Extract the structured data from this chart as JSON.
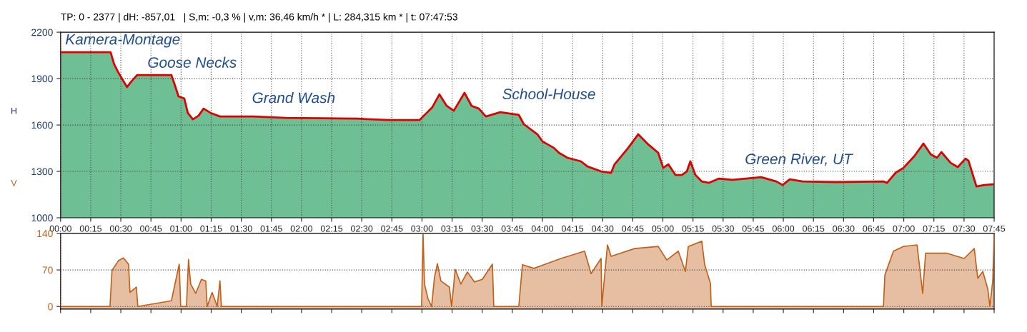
{
  "chart_data": [
    {
      "type": "area",
      "title": "TP: 0 - 2377 | dH: -857,01   | S,m: -0,3 % | v,m: 36,46 km/h * | L: 284,315 km * | t: 07:47:53",
      "ylabel": "H",
      "x": [
        0.0,
        0.415,
        0.445,
        0.475,
        0.516,
        0.552,
        0.582,
        0.635,
        0.92,
        0.95,
        0.979,
        1.027,
        1.056,
        1.098,
        1.145,
        1.187,
        1.246,
        1.323,
        1.602,
        1.869,
        2.463,
        2.73,
        2.979,
        3.027,
        3.086,
        3.145,
        3.205,
        3.264,
        3.353,
        3.412,
        3.472,
        3.531,
        3.591,
        3.65,
        3.804,
        3.846,
        3.958,
        4.0,
        4.095,
        4.137,
        4.208,
        4.32,
        4.374,
        4.487,
        4.57,
        4.599,
        4.712,
        4.795,
        4.878,
        4.961,
        5.003,
        5.045,
        5.104,
        5.157,
        5.199,
        5.228,
        5.27,
        5.323,
        5.383,
        5.466,
        5.579,
        5.816,
        5.941,
        5.994,
        6.053,
        6.16,
        6.439,
        6.831,
        6.861,
        6.932,
        6.997,
        7.086,
        7.163,
        7.223,
        7.276,
        7.312,
        7.389,
        7.448,
        7.513,
        7.537,
        7.603,
        7.668,
        7.75
      ],
      "series": [
        {
          "type": "area",
          "color": "#6fbf94",
          "values": [
            2071,
            2071,
            1992,
            1946,
            1891,
            1845,
            1877,
            1923,
            1923,
            1854,
            1785,
            1771,
            1678,
            1637,
            1660,
            1706,
            1678,
            1655,
            1655,
            1646,
            1641,
            1632,
            1632,
            1669,
            1715,
            1798,
            1724,
            1692,
            1808,
            1724,
            1706,
            1655,
            1669,
            1683,
            1665,
            1605,
            1540,
            1494,
            1452,
            1420,
            1388,
            1365,
            1332,
            1300,
            1291,
            1346,
            1452,
            1540,
            1475,
            1420,
            1323,
            1346,
            1277,
            1277,
            1300,
            1365,
            1277,
            1235,
            1226,
            1254,
            1245,
            1263,
            1235,
            1212,
            1249,
            1235,
            1231,
            1235,
            1226,
            1291,
            1323,
            1397,
            1480,
            1411,
            1388,
            1425,
            1355,
            1328,
            1383,
            1369,
            1203,
            1212,
            1217
          ]
        },
        {
          "type": "line",
          "color": "#e00000",
          "values": [
            2071,
            2071,
            1992,
            1946,
            1891,
            1845,
            1877,
            1923,
            1923,
            1854,
            1785,
            1771,
            1678,
            1637,
            1660,
            1706,
            1678,
            1655,
            1655,
            1646,
            1641,
            1632,
            1632,
            1669,
            1715,
            1798,
            1724,
            1692,
            1808,
            1724,
            1706,
            1655,
            1669,
            1683,
            1665,
            1605,
            1540,
            1494,
            1452,
            1420,
            1388,
            1365,
            1332,
            1300,
            1291,
            1346,
            1452,
            1540,
            1475,
            1420,
            1323,
            1346,
            1277,
            1277,
            1300,
            1365,
            1277,
            1235,
            1226,
            1254,
            1245,
            1263,
            1235,
            1212,
            1249,
            1235,
            1231,
            1235,
            1226,
            1291,
            1323,
            1397,
            1480,
            1411,
            1388,
            1425,
            1355,
            1328,
            1383,
            1369,
            1203,
            1212,
            1217
          ]
        }
      ],
      "annotations": [
        "Kamera-Montage",
        "Goose Necks",
        "Grand Wash",
        "School-House",
        "Green River, UT"
      ],
      "xlim": [
        0,
        7.75
      ],
      "xticks": [
        {
          "value": 0,
          "label": "00:00"
        },
        {
          "value": 0.25,
          "label": "00:15"
        },
        {
          "value": 0.5,
          "label": "00:30"
        },
        {
          "value": 0.75,
          "label": "00:45"
        },
        {
          "value": 1,
          "label": "01:00"
        },
        {
          "value": 1.25,
          "label": "01:15"
        },
        {
          "value": 1.5,
          "label": "01:30"
        },
        {
          "value": 1.75,
          "label": "01:45"
        },
        {
          "value": 2,
          "label": "02:00"
        },
        {
          "value": 2.25,
          "label": "02:15"
        },
        {
          "value": 2.5,
          "label": "02:30"
        },
        {
          "value": 2.75,
          "label": "02:45"
        },
        {
          "value": 3,
          "label": "03:00"
        },
        {
          "value": 3.25,
          "label": "03:15"
        },
        {
          "value": 3.5,
          "label": "03:30"
        },
        {
          "value": 3.75,
          "label": "03:45"
        },
        {
          "value": 4,
          "label": "04:00"
        },
        {
          "value": 4.25,
          "label": "04:15"
        },
        {
          "value": 4.5,
          "label": "04:30"
        },
        {
          "value": 4.75,
          "label": "04:45"
        },
        {
          "value": 5,
          "label": "05:00"
        },
        {
          "value": 5.25,
          "label": "05:15"
        },
        {
          "value": 5.5,
          "label": "05:30"
        },
        {
          "value": 5.75,
          "label": "05:45"
        },
        {
          "value": 6,
          "label": "06:00"
        },
        {
          "value": 6.25,
          "label": "06:15"
        },
        {
          "value": 6.5,
          "label": "06:30"
        },
        {
          "value": 6.75,
          "label": "06:45"
        },
        {
          "value": 7,
          "label": "07:00"
        },
        {
          "value": 7.25,
          "label": "07:15"
        },
        {
          "value": 7.5,
          "label": "07:30"
        },
        {
          "value": 7.75,
          "label": "07:45"
        }
      ],
      "ylim": [
        1000,
        2200
      ],
      "yticks": [
        1000,
        1300,
        1600,
        1900,
        2200
      ],
      "grid": true,
      "ref_lines": [
        {
          "axis": "x",
          "value": 0,
          "color": "#e00000",
          "line_style": "dotted"
        }
      ]
    },
    {
      "type": "area",
      "ylabel": "V",
      "tick_labels": "y",
      "x": [
        0,
        0.41,
        0.427,
        0.481,
        0.522,
        0.564,
        0.576,
        0.629,
        0.641,
        0.92,
        0.985,
        0.997,
        1.045,
        1.062,
        1.08,
        1.122,
        1.169,
        1.205,
        1.217,
        1.258,
        1.3,
        1.323,
        1.335,
        2.997,
        3.009,
        3.021,
        3.05,
        3.08,
        3.104,
        3.128,
        3.157,
        3.228,
        3.246,
        3.276,
        3.323,
        3.377,
        3.436,
        3.501,
        3.585,
        3.596,
        3.804,
        3.834,
        3.929,
        4.012,
        4.154,
        4.35,
        4.404,
        4.487,
        4.493,
        4.54,
        4.57,
        4.766,
        4.961,
        5.033,
        5.128,
        5.187,
        5.211,
        5.323,
        5.347,
        5.395,
        5.401,
        6.831,
        6.843,
        6.914,
        6.997,
        7.11,
        7.157,
        7.181,
        7.359,
        7.501,
        7.585,
        7.614,
        7.656,
        7.697,
        7.715,
        7.739,
        7.75
      ],
      "series": [
        {
          "type": "area",
          "color": "#c0601a",
          "values": [
            0,
            0,
            69,
            88,
            93,
            81,
            27,
            37,
            0,
            11,
            81,
            0,
            0,
            90,
            43,
            25,
            52,
            49,
            0,
            27,
            0,
            49,
            0,
            0,
            140,
            43,
            15,
            0,
            56,
            82,
            49,
            37,
            0,
            71,
            43,
            66,
            47,
            52,
            81,
            0,
            0,
            80,
            73,
            80,
            92,
            106,
            63,
            92,
            0,
            118,
            96,
            111,
            115,
            89,
            106,
            67,
            115,
            125,
            80,
            44,
            0,
            0,
            60,
            106,
            115,
            118,
            25,
            102,
            102,
            92,
            111,
            54,
            67,
            34,
            0,
            51,
            140
          ]
        }
      ],
      "xlim": [
        0,
        7.75
      ],
      "ylim": [
        -5,
        140
      ],
      "yticks": [
        0,
        70,
        140
      ],
      "grid": "y",
      "ref_lines": [
        {
          "axis": "x",
          "value": 0,
          "color": "#e00000",
          "line_style": "dotted"
        }
      ]
    }
  ]
}
